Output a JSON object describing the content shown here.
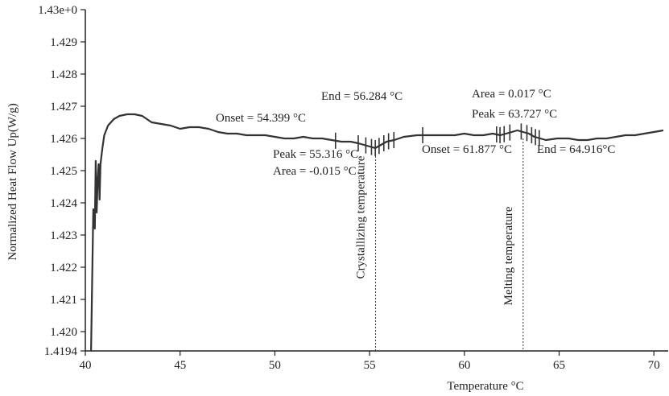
{
  "chart_data": {
    "type": "line",
    "xlabel": "Temperature °C",
    "ylabel": "Normalized Heat Flow Up(W/g)",
    "xlim": [
      40,
      70.5
    ],
    "ylim": [
      1.4194,
      1.43
    ],
    "x_ticks": [
      40,
      45,
      50,
      55,
      60,
      65,
      70
    ],
    "y_ticks": [
      1.4194,
      1.42,
      1.421,
      1.422,
      1.423,
      1.424,
      1.425,
      1.426,
      1.427,
      1.428,
      1.429,
      1.43
    ],
    "y_tick_labels": [
      "1.4194",
      "1.420",
      "1.421",
      "1.422",
      "1.423",
      "1.424",
      "1.425",
      "1.426",
      "1.427",
      "1.428",
      "1.429",
      "1.43e+0"
    ],
    "grid": false,
    "colors": {
      "curve": "#333333",
      "axis": "#222222",
      "guide": "#333333"
    },
    "series": [
      {
        "x": [
          40.3,
          40.42,
          40.5,
          40.55,
          40.6,
          40.65,
          40.7,
          40.75,
          40.8,
          40.9,
          41.0,
          41.2,
          41.5,
          41.8,
          42.2,
          42.6,
          43.0,
          43.5,
          44.0,
          44.5,
          45.0,
          45.5,
          46.0,
          46.5,
          47.0,
          47.5,
          48.0,
          48.5,
          49.0,
          49.5,
          50.0,
          50.5,
          51.0,
          51.5,
          52.0,
          52.5,
          53.0,
          53.5,
          54.0,
          54.4,
          54.7,
          55.0,
          55.3,
          55.6,
          55.9,
          56.3,
          56.8,
          57.5,
          58.0,
          58.5,
          59.0,
          59.5,
          60.0,
          60.5,
          61.0,
          61.5,
          61.9,
          62.2,
          62.5,
          62.8,
          63.1,
          63.4,
          63.7,
          64.0,
          64.3,
          64.9,
          65.5,
          66.0,
          66.5,
          67.0,
          67.5,
          68.0,
          68.5,
          69.0,
          69.5,
          70.0,
          70.5
        ],
        "y": [
          1.4194,
          1.4238,
          1.4232,
          1.4253,
          1.4237,
          1.4247,
          1.4252,
          1.4241,
          1.4252,
          1.4257,
          1.4261,
          1.4264,
          1.4266,
          1.4267,
          1.42675,
          1.42675,
          1.4267,
          1.4265,
          1.42645,
          1.4264,
          1.4263,
          1.42635,
          1.42635,
          1.4263,
          1.4262,
          1.42615,
          1.42615,
          1.4261,
          1.4261,
          1.4261,
          1.42605,
          1.426,
          1.426,
          1.42605,
          1.426,
          1.426,
          1.42595,
          1.4259,
          1.4259,
          1.42585,
          1.4258,
          1.42575,
          1.4257,
          1.4258,
          1.4259,
          1.42595,
          1.42605,
          1.4261,
          1.4261,
          1.4261,
          1.4261,
          1.4261,
          1.42615,
          1.4261,
          1.4261,
          1.42615,
          1.4261,
          1.42615,
          1.4262,
          1.42625,
          1.4262,
          1.42615,
          1.42605,
          1.426,
          1.42595,
          1.426,
          1.426,
          1.42595,
          1.42595,
          1.426,
          1.426,
          1.42605,
          1.4261,
          1.4261,
          1.42615,
          1.4262,
          1.42625
        ]
      }
    ],
    "tick_marks": [
      53.2,
      54.4,
      54.8,
      55.1,
      55.3,
      55.5,
      55.75,
      56.0,
      56.28,
      57.8,
      61.7,
      61.88,
      62.1,
      62.4,
      63.0,
      63.3,
      63.55,
      63.75,
      63.95
    ],
    "guides": [
      {
        "x": 55.316,
        "label": "Crystallizing temperature"
      },
      {
        "x": 63.1,
        "label": "Melting temperature"
      }
    ],
    "annotations": [
      {
        "text": "End = 56.284 °C",
        "x": 56.284
      },
      {
        "text": "Onset = 54.399 °C",
        "x": 54.399
      },
      {
        "text": "Peak = 55.316 °C",
        "x": 55.316
      },
      {
        "text": "Area = -0.015 °C",
        "x": 55.316
      },
      {
        "text": "Area = 0.017 °C",
        "x": 63.727
      },
      {
        "text": "Peak = 63.727 °C",
        "x": 63.727
      },
      {
        "text": "Onset = 61.877 °C",
        "x": 61.877
      },
      {
        "text": "End = 64.916°C",
        "x": 64.916
      }
    ]
  }
}
